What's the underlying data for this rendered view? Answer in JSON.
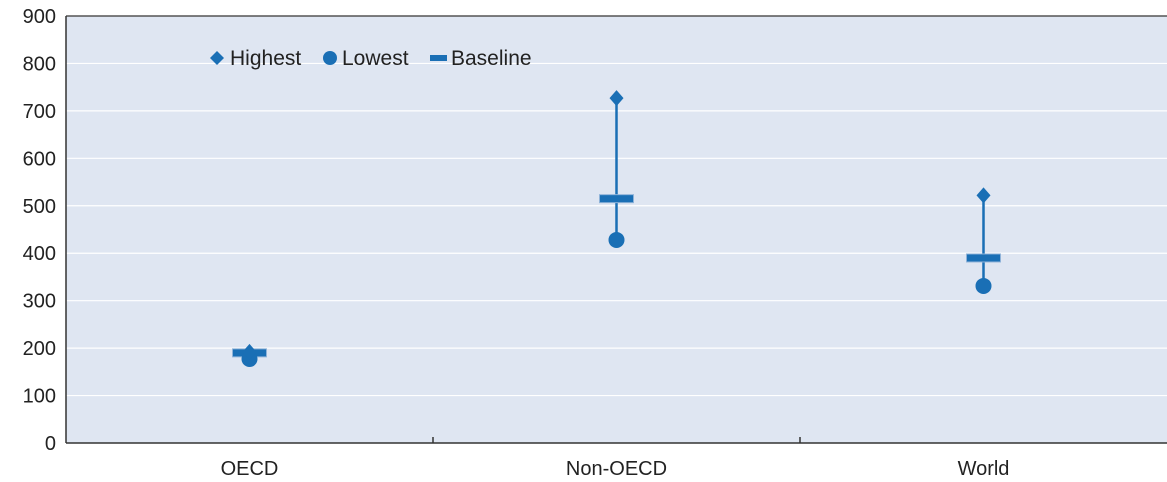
{
  "chart_data": {
    "type": "scatter",
    "categories": [
      "OECD",
      "Non-OECD",
      "World"
    ],
    "series": [
      {
        "name": "Highest",
        "values": [
          192,
          727,
          522
        ]
      },
      {
        "name": "Lowest",
        "values": [
          177,
          428,
          331
        ]
      },
      {
        "name": "Baseline",
        "values": [
          190,
          515,
          390
        ]
      }
    ],
    "ylim": [
      0,
      900
    ],
    "yticks": [
      0,
      100,
      200,
      300,
      400,
      500,
      600,
      700,
      800,
      900
    ],
    "grid": true,
    "legend_position": "top-left",
    "colors": {
      "marker": "#1a6fb5",
      "plot_bg": "#dfe6f2",
      "grid": "#ffffff",
      "axis": "#333333"
    }
  }
}
